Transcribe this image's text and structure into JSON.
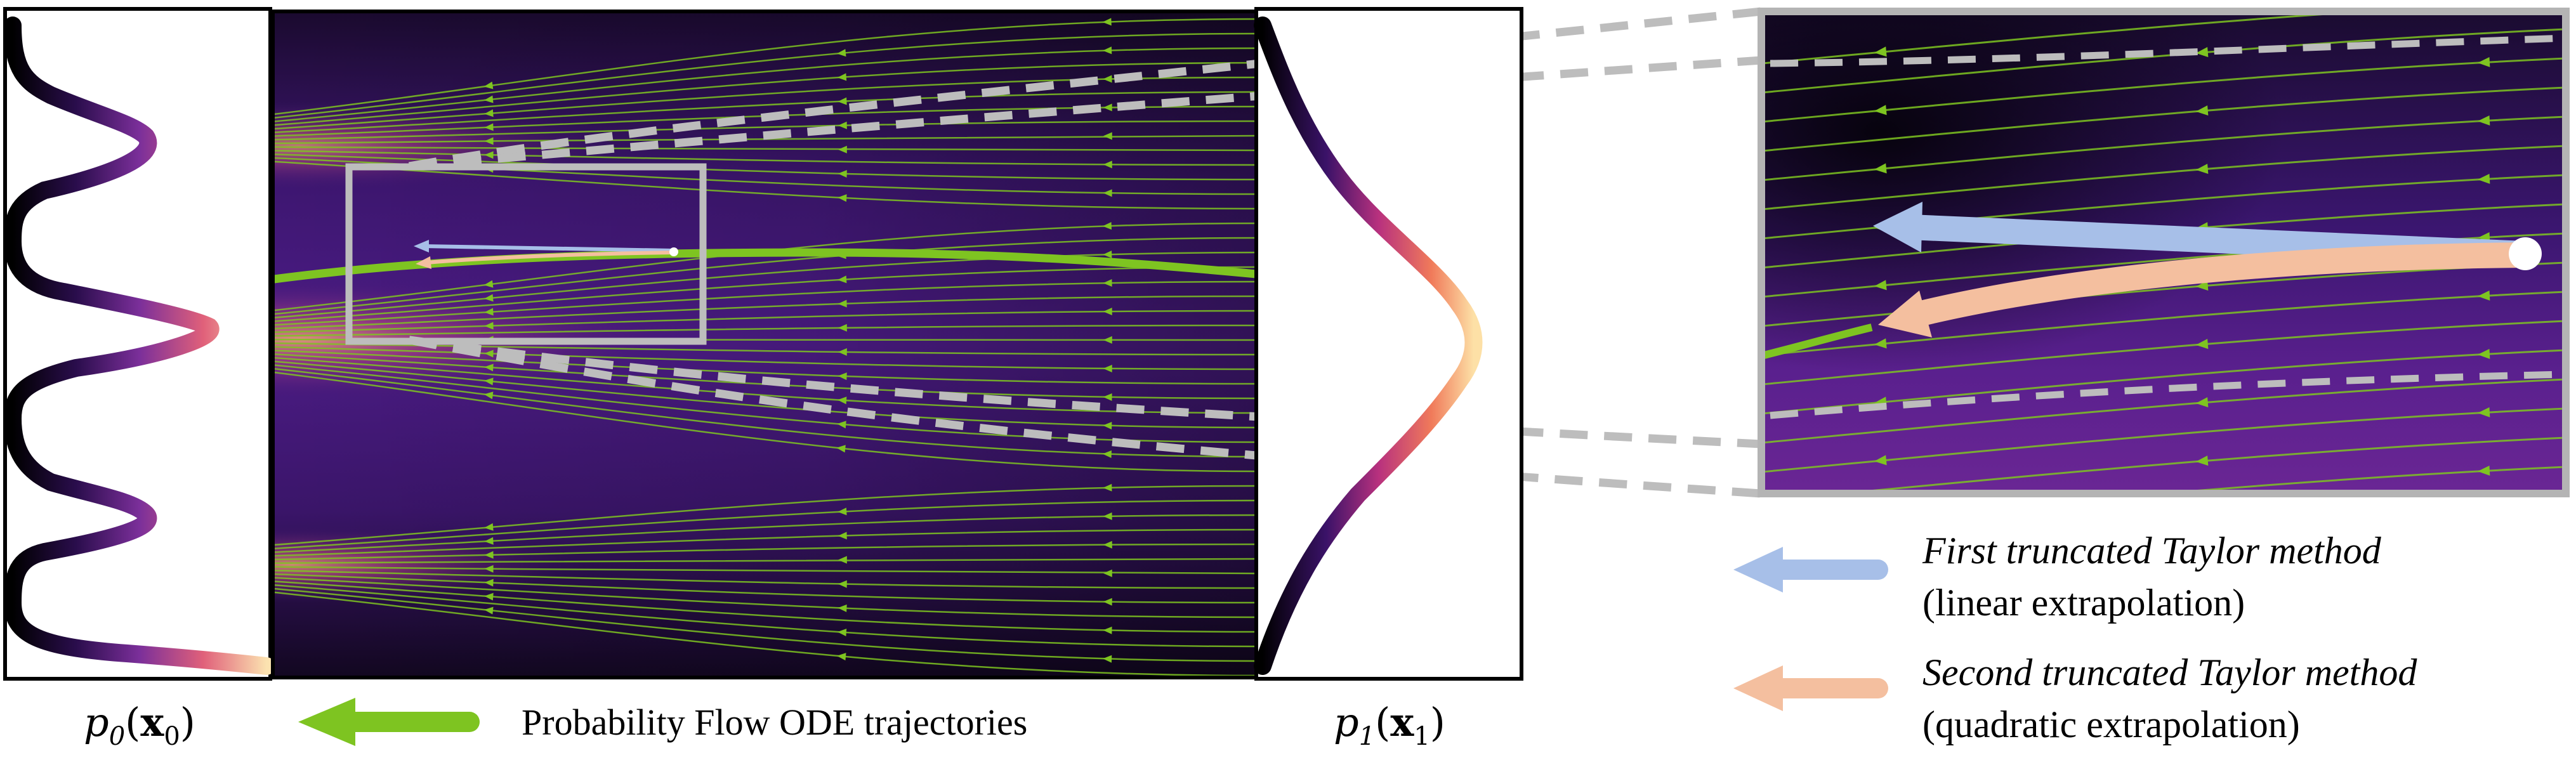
{
  "colors": {
    "flow_green": "#7ec421",
    "linear_arrow": "#a7bfe8",
    "quadratic_arrow": "#f4bf9f",
    "frame_gray": "#b4b4b4",
    "box_border": "#000000",
    "bg_dark": "#0e0618",
    "bg_purple": "#4a1b80",
    "glow_orange": "#f0a47a"
  },
  "labels": {
    "p0": {
      "base": "p",
      "sub": "0",
      "arg": "x",
      "arg_sub": "0"
    },
    "p1": {
      "base": "p",
      "sub": "1",
      "arg": "x",
      "arg_sub": "1"
    },
    "flow_legend": "Probability Flow ODE trajectories",
    "legend": [
      {
        "title": "First truncated Taylor method",
        "subtitle": "(linear extrapolation)",
        "color": "#a7bfe8",
        "icon": "left-arrow-icon"
      },
      {
        "title": "Second truncated Taylor method",
        "subtitle": "(quadratic extrapolation)",
        "color": "#f4bf9f",
        "icon": "left-arrow-icon"
      }
    ]
  },
  "icons": {
    "flow_legend_icon": "left-arrow-icon",
    "start_point_icon": "circle-marker-icon"
  }
}
